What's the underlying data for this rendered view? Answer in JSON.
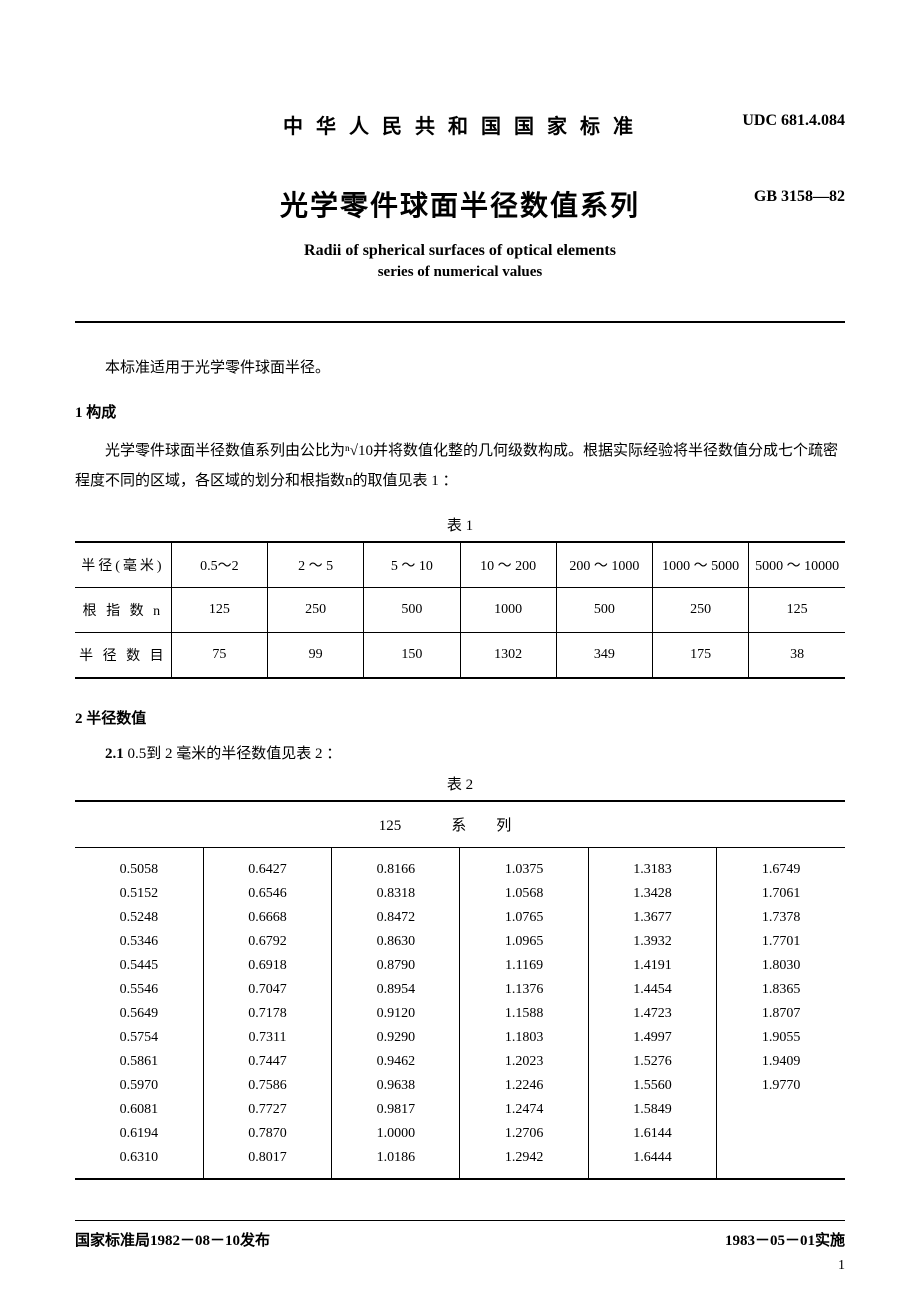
{
  "header": {
    "org": "中 华 人 民 共 和 国 国 家 标 准",
    "udc": "UDC 681.4.084",
    "title_cn": "光学零件球面半径数值系列",
    "gb": "GB  3158—82",
    "title_en1": "Radii of spherical surfaces of optical elements",
    "title_en2": "series of numerical values"
  },
  "intro": "本标准适用于光学零件球面半径。",
  "section1": {
    "heading": "1  构成",
    "para": "光学零件球面半径数值系列由公比为ⁿ√10并将数值化整的几何级数构成。根据实际经验将半径数值分成七个疏密程度不同的区域，各区域的划分和根指数n的取值见表 1 ："
  },
  "table1": {
    "caption": "表 1",
    "row1_label": "半径(毫米)",
    "row1": [
      "0.5～2",
      "2 ～ 5",
      "5 ～ 10",
      "10 ～ 200",
      "200 ～ 1000",
      "1000 ～ 5000",
      "5000 ～ 10000"
    ],
    "row2_label": "根 指 数 n",
    "row2": [
      "125",
      "250",
      "500",
      "1000",
      "500",
      "250",
      "125"
    ],
    "row3_label": "半 径 数 目",
    "row3": [
      "75",
      "99",
      "150",
      "1302",
      "349",
      "175",
      "38"
    ]
  },
  "section2": {
    "heading": "2  半径数值",
    "sub": "2.1",
    "subtext": "  0.5到 2 毫米的半径数值见表 2 ："
  },
  "table2": {
    "caption": "表 2",
    "series_num": "125",
    "series_label": "系列",
    "cols": [
      [
        "0.5058",
        "0.5152",
        "0.5248",
        "0.5346",
        "0.5445",
        "0.5546",
        "0.5649",
        "0.5754",
        "0.5861",
        "0.5970",
        "0.6081",
        "0.6194",
        "0.6310"
      ],
      [
        "0.6427",
        "0.6546",
        "0.6668",
        "0.6792",
        "0.6918",
        "0.7047",
        "0.7178",
        "0.7311",
        "0.7447",
        "0.7586",
        "0.7727",
        "0.7870",
        "0.8017"
      ],
      [
        "0.8166",
        "0.8318",
        "0.8472",
        "0.8630",
        "0.8790",
        "0.8954",
        "0.9120",
        "0.9290",
        "0.9462",
        "0.9638",
        "0.9817",
        "1.0000",
        "1.0186"
      ],
      [
        "1.0375",
        "1.0568",
        "1.0765",
        "1.0965",
        "1.1169",
        "1.1376",
        "1.1588",
        "1.1803",
        "1.2023",
        "1.2246",
        "1.2474",
        "1.2706",
        "1.2942"
      ],
      [
        "1.3183",
        "1.3428",
        "1.3677",
        "1.3932",
        "1.4191",
        "1.4454",
        "1.4723",
        "1.4997",
        "1.5276",
        "1.5560",
        "1.5849",
        "1.6144",
        "1.6444"
      ],
      [
        "1.6749",
        "1.7061",
        "1.7378",
        "1.7701",
        "1.8030",
        "1.8365",
        "1.8707",
        "1.9055",
        "1.9409",
        "1.9770",
        "",
        "",
        ""
      ]
    ]
  },
  "footer": {
    "left": "国家标准局1982－08－10发布",
    "right": "1983－05－01实施",
    "page": "1"
  },
  "style": {
    "bg": "#ffffff",
    "border": "#000000",
    "text": "#000000"
  }
}
